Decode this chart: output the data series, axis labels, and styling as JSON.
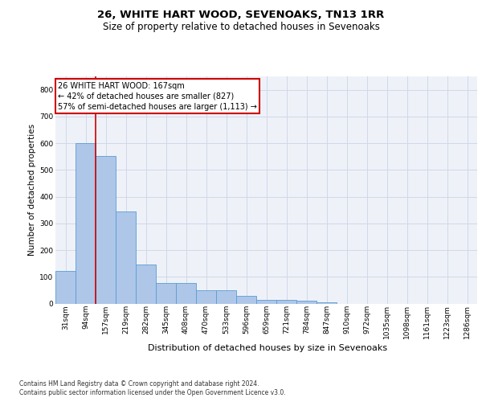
{
  "title": "26, WHITE HART WOOD, SEVENOAKS, TN13 1RR",
  "subtitle": "Size of property relative to detached houses in Sevenoaks",
  "xlabel": "Distribution of detached houses by size in Sevenoaks",
  "ylabel": "Number of detached properties",
  "footer_line1": "Contains HM Land Registry data © Crown copyright and database right 2024.",
  "footer_line2": "Contains public sector information licensed under the Open Government Licence v3.0.",
  "bar_labels": [
    "31sqm",
    "94sqm",
    "157sqm",
    "219sqm",
    "282sqm",
    "345sqm",
    "408sqm",
    "470sqm",
    "533sqm",
    "596sqm",
    "659sqm",
    "721sqm",
    "784sqm",
    "847sqm",
    "910sqm",
    "972sqm",
    "1035sqm",
    "1098sqm",
    "1161sqm",
    "1223sqm",
    "1286sqm"
  ],
  "bar_values": [
    122,
    601,
    553,
    345,
    147,
    77,
    77,
    51,
    51,
    30,
    15,
    14,
    12,
    5,
    0,
    0,
    0,
    0,
    0,
    0,
    0
  ],
  "bar_color": "#aec6e8",
  "bar_edge_color": "#5b9bd5",
  "redline_index": 2,
  "redline_color": "#cc0000",
  "ylim": [
    0,
    850
  ],
  "yticks": [
    0,
    100,
    200,
    300,
    400,
    500,
    600,
    700,
    800
  ],
  "annotation_text": "26 WHITE HART WOOD: 167sqm\n← 42% of detached houses are smaller (827)\n57% of semi-detached houses are larger (1,113) →",
  "annotation_box_facecolor": "#ffffff",
  "annotation_box_edgecolor": "#cc0000",
  "grid_color": "#d0d8e8",
  "bg_color": "#eef2f8",
  "fig_bg_color": "#ffffff",
  "title_fontsize": 9.5,
  "subtitle_fontsize": 8.5,
  "ylabel_fontsize": 7.5,
  "xlabel_fontsize": 8,
  "tick_fontsize": 6.5,
  "annotation_fontsize": 7,
  "footer_fontsize": 5.5
}
